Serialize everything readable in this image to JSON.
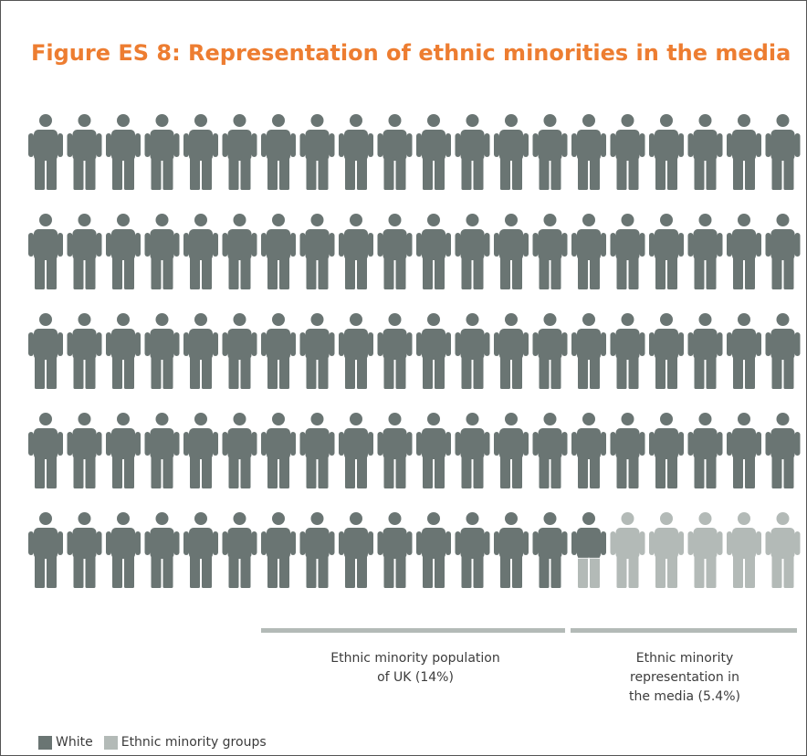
{
  "title": "Figure ES 8: Representation of ethnic minorities in the media",
  "colors": {
    "white": "#6a7573",
    "minority": "#b3bab7",
    "title": "#ed7d31"
  },
  "chart_data": {
    "type": "pictogram",
    "total_figures": 100,
    "rows": 5,
    "columns": 20,
    "series": [
      {
        "name": "White",
        "value": 94.6
      },
      {
        "name": "Ethnic minority groups",
        "value": 5.4
      }
    ],
    "annotations": [
      {
        "label": "Ethnic minority population of UK (14%)",
        "value": 14
      },
      {
        "label": "Ethnic minority representation in the media (5.4%)",
        "value": 5.4
      }
    ]
  },
  "annotations": {
    "population_line1": "Ethnic minority population",
    "population_line2": "of UK (14%)",
    "media_line1": "Ethnic minority",
    "media_line2": "representation in",
    "media_line3": "the media (5.4%)"
  },
  "legend": {
    "white": "White",
    "minority": "Ethnic minority groups"
  }
}
